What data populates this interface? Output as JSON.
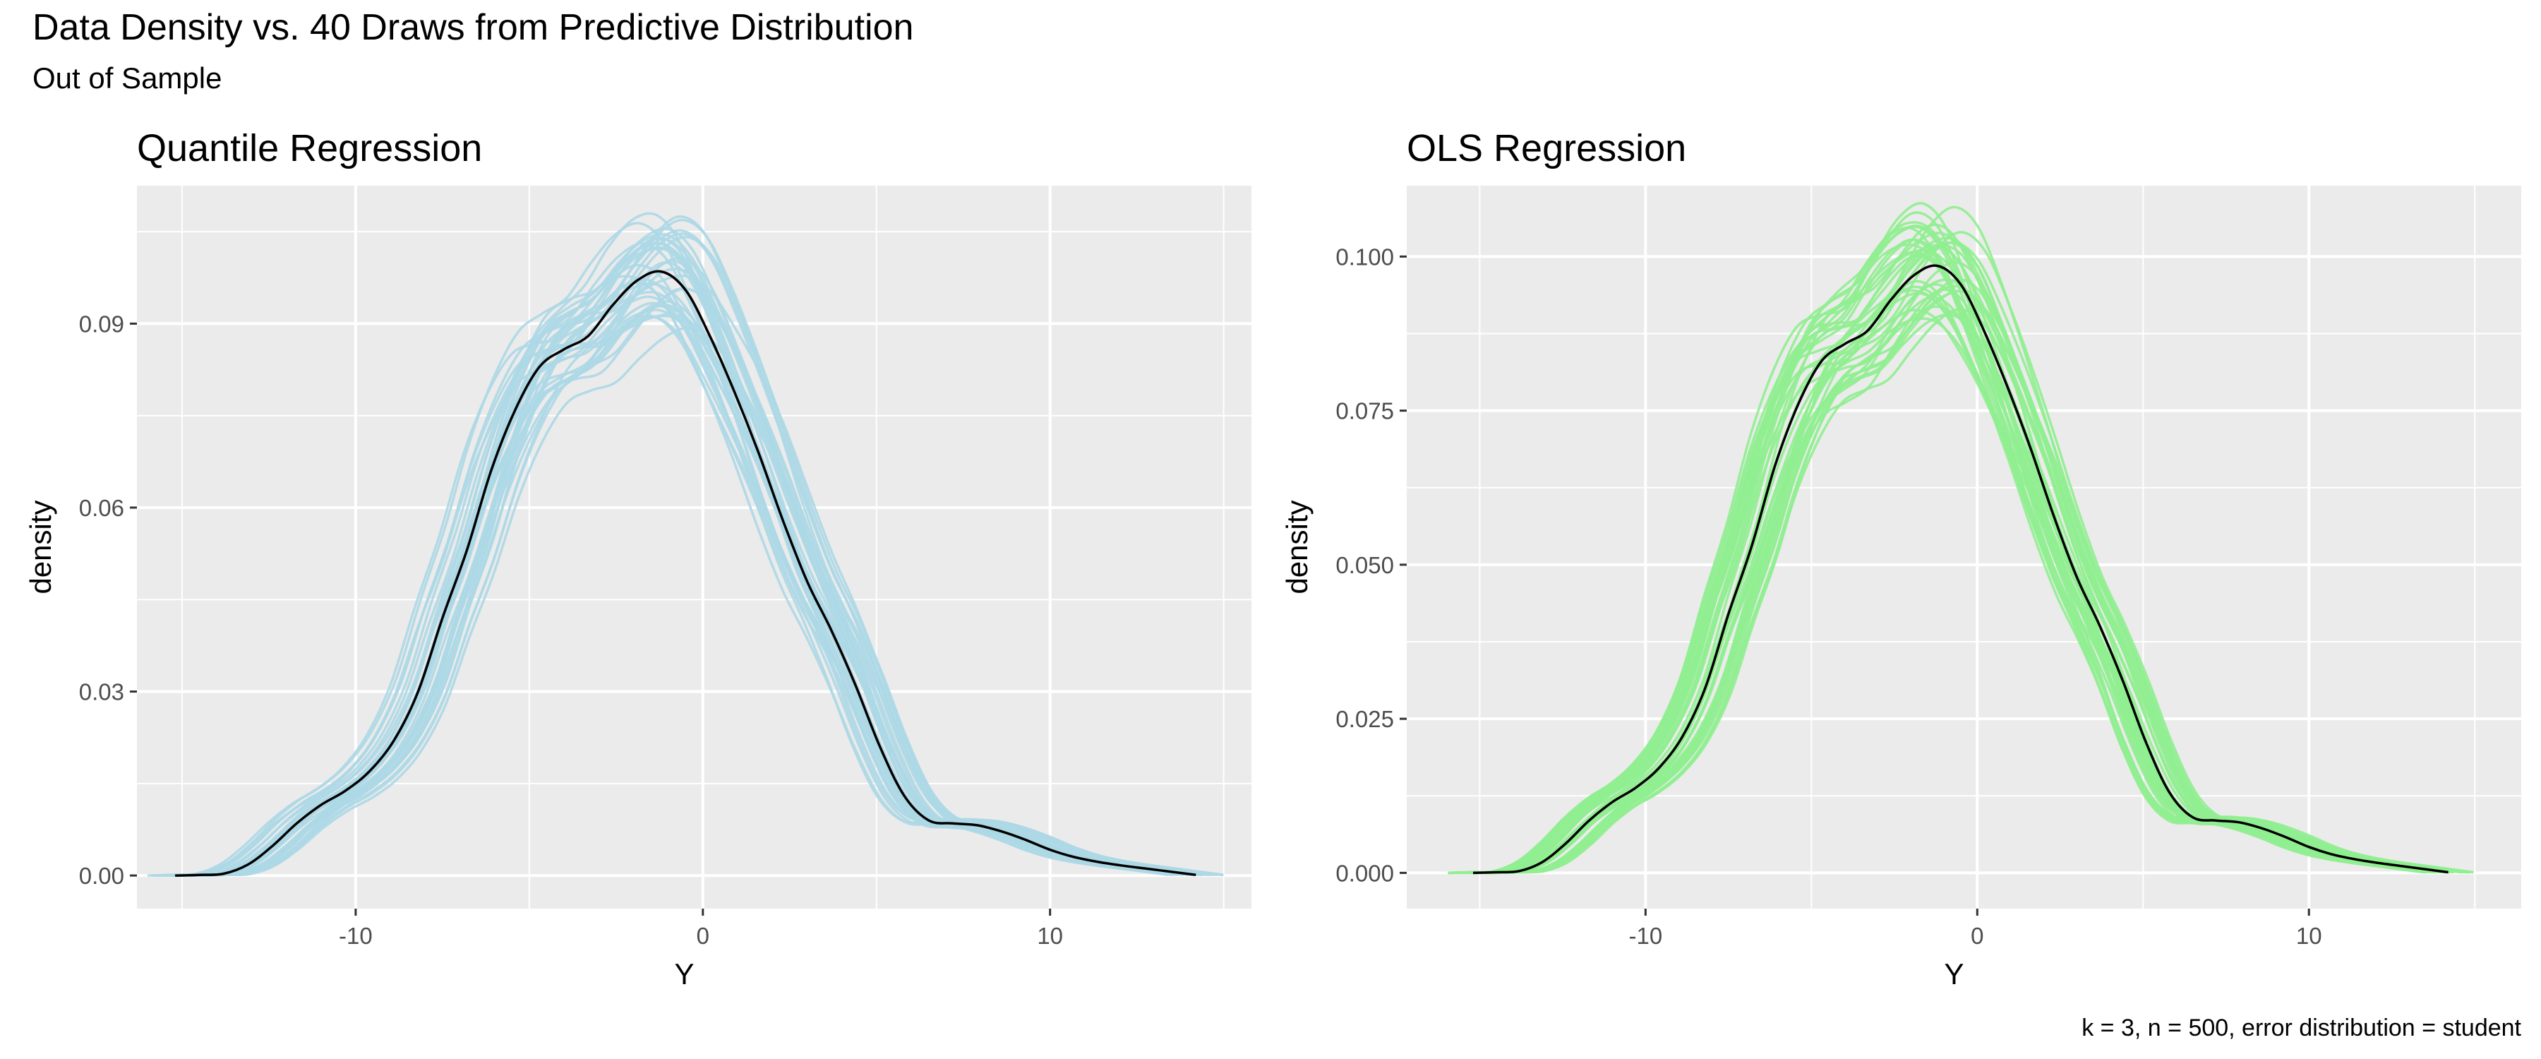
{
  "title": "Data Density vs. 40 Draws from Predictive Distribution",
  "subtitle": "Out of Sample",
  "caption": "k = 3, n = 500, error distribution = student",
  "colors": {
    "panel_bg": "#ebebeb",
    "grid": "#ffffff",
    "data_line": "#000000"
  },
  "chart_data": [
    {
      "type": "line",
      "title": "Quantile Regression",
      "xlabel": "Y",
      "ylabel": "density",
      "xlim": [
        -16.3,
        15.8
      ],
      "ylim": [
        -0.0054,
        0.1125
      ],
      "x_ticks": [
        -10,
        0,
        10
      ],
      "x_tick_labels": [
        "-10",
        "0",
        "10"
      ],
      "y_ticks": [
        0,
        0.03,
        0.06,
        0.09
      ],
      "y_tick_labels": [
        "0.00",
        "0.03",
        "0.06",
        "0.09"
      ],
      "grid": true,
      "draws_color": "#add8e6",
      "num_draws": 40,
      "x": [
        -15.2,
        -14.5,
        -13.8,
        -13.1,
        -12.4,
        -11.7,
        -11,
        -10.3,
        -9.6,
        -8.9,
        -8.2,
        -7.5,
        -6.8,
        -6.1,
        -5.4,
        -4.7,
        -4,
        -3.3,
        -2.6,
        -1.9,
        -1.2,
        -0.5,
        0.2,
        0.9,
        1.6,
        2.3,
        3,
        3.7,
        4.4,
        5.1,
        5.8,
        6.5,
        7.2,
        7.9,
        8.6,
        9.3,
        10,
        10.7,
        11.4,
        12.1,
        12.8,
        13.5,
        14.2
      ],
      "series": [
        {
          "role": "data",
          "values": [
            0,
            0.0001,
            0.0003,
            0.0018,
            0.0048,
            0.0085,
            0.0115,
            0.0138,
            0.017,
            0.022,
            0.03,
            0.042,
            0.053,
            0.066,
            0.076,
            0.083,
            0.0858,
            0.088,
            0.093,
            0.097,
            0.0985,
            0.0955,
            0.088,
            0.079,
            0.069,
            0.058,
            0.048,
            0.04,
            0.031,
            0.021,
            0.013,
            0.009,
            0.0085,
            0.0082,
            0.0072,
            0.0058,
            0.0042,
            0.003,
            0.0022,
            0.0016,
            0.0011,
            0.0006,
            0.0001
          ]
        }
      ]
    },
    {
      "type": "line",
      "title": "OLS Regression",
      "xlabel": "Y",
      "ylabel": "density",
      "xlim": [
        -17.2,
        16.4
      ],
      "ylim": [
        -0.0058,
        0.1115
      ],
      "x_ticks": [
        -10,
        0,
        10
      ],
      "x_tick_labels": [
        "-10",
        "0",
        "10"
      ],
      "y_ticks": [
        0,
        0.025,
        0.05,
        0.075,
        0.1
      ],
      "y_tick_labels": [
        "0.000",
        "0.025",
        "0.050",
        "0.075",
        "0.100"
      ],
      "grid": true,
      "draws_color": "#90ee90",
      "num_draws": 40,
      "x": [
        -15.2,
        -14.5,
        -13.8,
        -13.1,
        -12.4,
        -11.7,
        -11,
        -10.3,
        -9.6,
        -8.9,
        -8.2,
        -7.5,
        -6.8,
        -6.1,
        -5.4,
        -4.7,
        -4,
        -3.3,
        -2.6,
        -1.9,
        -1.2,
        -0.5,
        0.2,
        0.9,
        1.6,
        2.3,
        3,
        3.7,
        4.4,
        5.1,
        5.8,
        6.5,
        7.2,
        7.9,
        8.6,
        9.3,
        10,
        10.7,
        11.4,
        12.1,
        12.8,
        13.5,
        14.2
      ],
      "series": [
        {
          "role": "data",
          "values": [
            0,
            0.0001,
            0.0003,
            0.0018,
            0.0048,
            0.0085,
            0.0115,
            0.0138,
            0.017,
            0.022,
            0.03,
            0.042,
            0.053,
            0.066,
            0.076,
            0.083,
            0.0858,
            0.088,
            0.093,
            0.097,
            0.0985,
            0.0955,
            0.088,
            0.079,
            0.069,
            0.058,
            0.048,
            0.04,
            0.031,
            0.021,
            0.013,
            0.009,
            0.0085,
            0.0082,
            0.0072,
            0.0058,
            0.0042,
            0.003,
            0.0022,
            0.0016,
            0.0011,
            0.0006,
            0.0001
          ]
        }
      ]
    }
  ]
}
